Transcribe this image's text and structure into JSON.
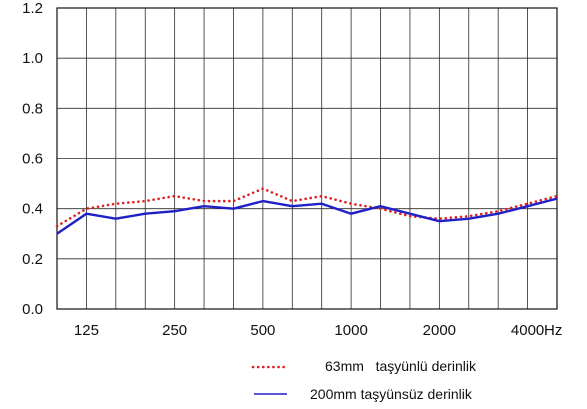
{
  "chart_data": {
    "type": "line",
    "x": [
      100,
      125,
      160,
      200,
      250,
      315,
      400,
      500,
      630,
      800,
      1000,
      1250,
      1600,
      2000,
      2500,
      3150,
      4000,
      5000
    ],
    "x_tick_labels": [
      "125",
      "250",
      "500",
      "1000",
      "2000",
      "4000"
    ],
    "x_unit": "Hz",
    "ylim": [
      0.0,
      1.2
    ],
    "y_ticks": [
      "0.0",
      "0.2",
      "0.4",
      "0.6",
      "0.8",
      "1.0",
      "1.2"
    ],
    "grid": true,
    "legend_position": "bottom-right",
    "series": [
      {
        "name": "63mm   taşyünlü derinlik",
        "style": "dotted",
        "color": "#e02020",
        "values": [
          0.33,
          0.4,
          0.42,
          0.43,
          0.45,
          0.43,
          0.43,
          0.48,
          0.43,
          0.45,
          0.42,
          0.4,
          0.37,
          0.36,
          0.37,
          0.39,
          0.42,
          0.45
        ]
      },
      {
        "name": "200mm taşyünsüz derinlik",
        "style": "solid",
        "color": "#2020c8",
        "values": [
          0.3,
          0.38,
          0.36,
          0.38,
          0.39,
          0.41,
          0.4,
          0.43,
          0.41,
          0.42,
          0.38,
          0.41,
          0.38,
          0.35,
          0.36,
          0.38,
          0.41,
          0.44
        ]
      }
    ]
  }
}
